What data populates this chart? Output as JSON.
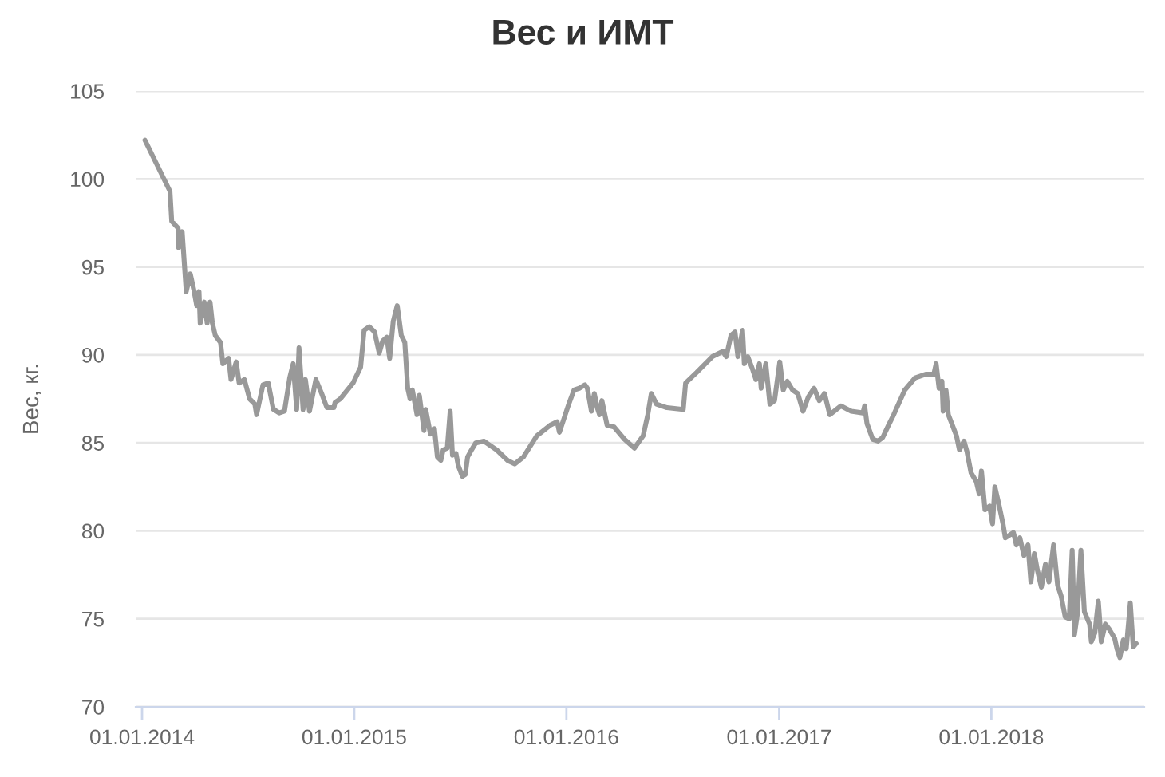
{
  "chart_data": {
    "type": "line",
    "title": "Вес и ИМТ",
    "ylabel": "Вес, кг.",
    "color": "#999999",
    "grid": "y",
    "xlim": [
      "2013-12-21",
      "2018-09-21"
    ],
    "ylim": [
      70,
      105
    ],
    "xticks": [
      {
        "value": "2014-01-01",
        "label": "01.01.2014"
      },
      {
        "value": "2015-01-01",
        "label": "01.01.2015"
      },
      {
        "value": "2016-01-01",
        "label": "01.01.2016"
      },
      {
        "value": "2017-01-01",
        "label": "01.01.2017"
      },
      {
        "value": "2018-01-01",
        "label": "01.01.2018"
      }
    ],
    "yticks": [
      70,
      75,
      80,
      85,
      90,
      95,
      100,
      105
    ],
    "x": [
      "2014-01-06",
      "2014-02-18",
      "2014-02-21",
      "2014-03-04",
      "2014-03-05",
      "2014-03-11",
      "2014-03-18",
      "2014-03-25",
      "2014-03-31",
      "2014-04-05",
      "2014-04-09",
      "2014-04-11",
      "2014-04-18",
      "2014-04-23",
      "2014-04-28",
      "2014-05-02",
      "2014-05-07",
      "2014-05-16",
      "2014-05-20",
      "2014-05-30",
      "2014-06-03",
      "2014-06-12",
      "2014-06-17",
      "2014-06-26",
      "2014-07-05",
      "2014-07-14",
      "2014-07-17",
      "2014-07-28",
      "2014-08-06",
      "2014-08-15",
      "2014-08-25",
      "2014-09-03",
      "2014-09-12",
      "2014-09-18",
      "2014-09-24",
      "2014-09-28",
      "2014-10-05",
      "2014-10-09",
      "2014-10-16",
      "2014-10-27",
      "2014-11-06",
      "2014-11-15",
      "2014-11-27",
      "2014-11-29",
      "2014-12-08",
      "2014-12-30",
      "2015-01-12",
      "2015-01-18",
      "2015-01-27",
      "2015-02-05",
      "2015-02-13",
      "2015-02-19",
      "2015-02-26",
      "2015-03-03",
      "2015-03-09",
      "2015-03-16",
      "2015-03-23",
      "2015-03-29",
      "2015-04-03",
      "2015-04-07",
      "2015-04-11",
      "2015-04-19",
      "2015-04-23",
      "2015-05-01",
      "2015-05-04",
      "2015-05-12",
      "2015-05-19",
      "2015-05-24",
      "2015-05-30",
      "2015-06-03",
      "2015-06-10",
      "2015-06-15",
      "2015-06-19",
      "2015-06-25",
      "2015-06-29",
      "2015-07-06",
      "2015-07-11",
      "2015-07-15",
      "2015-07-20",
      "2015-07-29",
      "2015-08-12",
      "2015-09-03",
      "2015-09-22",
      "2015-10-04",
      "2015-10-19",
      "2015-11-11",
      "2015-12-04",
      "2015-12-16",
      "2015-12-20",
      "2016-01-05",
      "2016-01-14",
      "2016-01-23",
      "2016-02-02",
      "2016-02-06",
      "2016-02-13",
      "2016-02-18",
      "2016-02-23",
      "2016-02-27",
      "2016-03-02",
      "2016-03-11",
      "2016-03-23",
      "2016-04-10",
      "2016-04-27",
      "2016-05-12",
      "2016-05-20",
      "2016-05-26",
      "2016-06-04",
      "2016-06-22",
      "2016-07-20",
      "2016-07-24",
      "2016-08-12",
      "2016-09-08",
      "2016-09-26",
      "2016-10-02",
      "2016-10-10",
      "2016-10-17",
      "2016-10-22",
      "2016-10-30",
      "2016-11-02",
      "2016-11-08",
      "2016-11-16",
      "2016-11-22",
      "2016-11-28",
      "2016-12-01",
      "2016-12-09",
      "2016-12-16",
      "2016-12-24",
      "2017-01-02",
      "2017-01-08",
      "2017-01-15",
      "2017-01-24",
      "2017-02-02",
      "2017-02-11",
      "2017-02-20",
      "2017-03-02",
      "2017-03-11",
      "2017-03-20",
      "2017-03-29",
      "2017-04-17",
      "2017-05-05",
      "2017-05-25",
      "2017-05-28",
      "2017-06-01",
      "2017-06-11",
      "2017-06-20",
      "2017-06-28",
      "2017-07-08",
      "2017-07-17",
      "2017-08-05",
      "2017-08-23",
      "2017-09-10",
      "2017-09-24",
      "2017-09-28",
      "2017-10-03",
      "2017-10-08",
      "2017-10-10",
      "2017-10-15",
      "2017-10-19",
      "2017-10-26",
      "2017-11-02",
      "2017-11-07",
      "2017-11-15",
      "2017-11-20",
      "2017-11-27",
      "2017-12-06",
      "2017-12-11",
      "2017-12-15",
      "2017-12-21",
      "2017-12-29",
      "2018-01-03",
      "2018-01-07",
      "2018-01-14",
      "2018-01-21",
      "2018-01-25",
      "2018-02-08",
      "2018-02-13",
      "2018-02-19",
      "2018-02-26",
      "2018-03-05",
      "2018-03-10",
      "2018-03-16",
      "2018-03-21",
      "2018-03-28",
      "2018-04-04",
      "2018-04-10",
      "2018-04-18",
      "2018-04-25",
      "2018-05-01",
      "2018-05-08",
      "2018-05-15",
      "2018-05-20",
      "2018-05-24",
      "2018-05-29",
      "2018-06-04",
      "2018-06-10",
      "2018-06-19",
      "2018-06-22",
      "2018-06-28",
      "2018-07-04",
      "2018-07-09",
      "2018-07-16",
      "2018-07-23",
      "2018-08-01",
      "2018-08-05",
      "2018-08-10",
      "2018-08-16",
      "2018-08-21",
      "2018-08-28",
      "2018-09-02",
      "2018-09-07"
    ],
    "values": [
      102.2,
      99.3,
      97.6,
      97.2,
      96.1,
      97.0,
      93.6,
      94.6,
      93.7,
      92.8,
      93.6,
      91.8,
      93.0,
      91.8,
      93.0,
      91.8,
      91.1,
      90.7,
      89.5,
      89.8,
      88.6,
      89.6,
      88.4,
      88.6,
      87.5,
      87.2,
      86.6,
      88.3,
      88.4,
      86.9,
      86.7,
      86.8,
      88.7,
      89.5,
      86.9,
      90.4,
      86.9,
      88.6,
      86.8,
      88.6,
      87.8,
      87.0,
      87.0,
      87.3,
      87.5,
      88.4,
      89.3,
      91.4,
      91.6,
      91.3,
      90.1,
      90.8,
      91.0,
      89.8,
      91.9,
      92.8,
      91.1,
      90.7,
      88.1,
      87.5,
      88.0,
      86.6,
      87.7,
      85.7,
      86.9,
      85.5,
      85.8,
      84.2,
      84.0,
      84.6,
      84.7,
      86.8,
      84.3,
      84.4,
      83.7,
      83.1,
      83.2,
      84.2,
      84.5,
      85.0,
      85.1,
      84.6,
      84.0,
      83.8,
      84.2,
      85.4,
      86.0,
      86.2,
      85.6,
      87.2,
      88.0,
      88.1,
      88.3,
      88.1,
      86.8,
      87.8,
      87.0,
      86.6,
      87.4,
      86.0,
      85.9,
      85.2,
      84.7,
      85.4,
      86.6,
      87.8,
      87.2,
      87.0,
      86.9,
      88.4,
      89.0,
      89.9,
      90.2,
      89.9,
      91.1,
      91.3,
      89.9,
      91.4,
      89.5,
      89.9,
      89.2,
      88.6,
      89.5,
      88.1,
      89.5,
      87.2,
      87.4,
      89.6,
      88.0,
      88.5,
      88.0,
      87.8,
      86.8,
      87.6,
      88.1,
      87.4,
      87.8,
      86.6,
      87.1,
      86.8,
      86.7,
      87.1,
      86.1,
      85.2,
      85.1,
      85.3,
      86.0,
      86.6,
      88.0,
      88.7,
      88.9,
      88.9,
      89.5,
      88.1,
      88.5,
      86.8,
      88.0,
      86.6,
      86.0,
      85.4,
      84.6,
      85.1,
      84.5,
      83.3,
      82.8,
      82.1,
      83.4,
      81.2,
      81.4,
      80.4,
      82.5,
      81.5,
      80.4,
      79.6,
      79.9,
      79.2,
      79.6,
      78.6,
      79.2,
      77.1,
      78.7,
      77.8,
      76.8,
      78.1,
      77.1,
      79.2,
      76.9,
      76.3,
      75.1,
      75.0,
      78.9,
      74.1,
      75.3,
      78.9,
      75.4,
      74.7,
      73.7,
      74.2,
      76.0,
      73.7,
      74.7,
      74.4,
      73.9,
      73.3,
      72.8,
      73.8,
      73.3,
      75.9,
      73.4,
      73.6
    ]
  }
}
